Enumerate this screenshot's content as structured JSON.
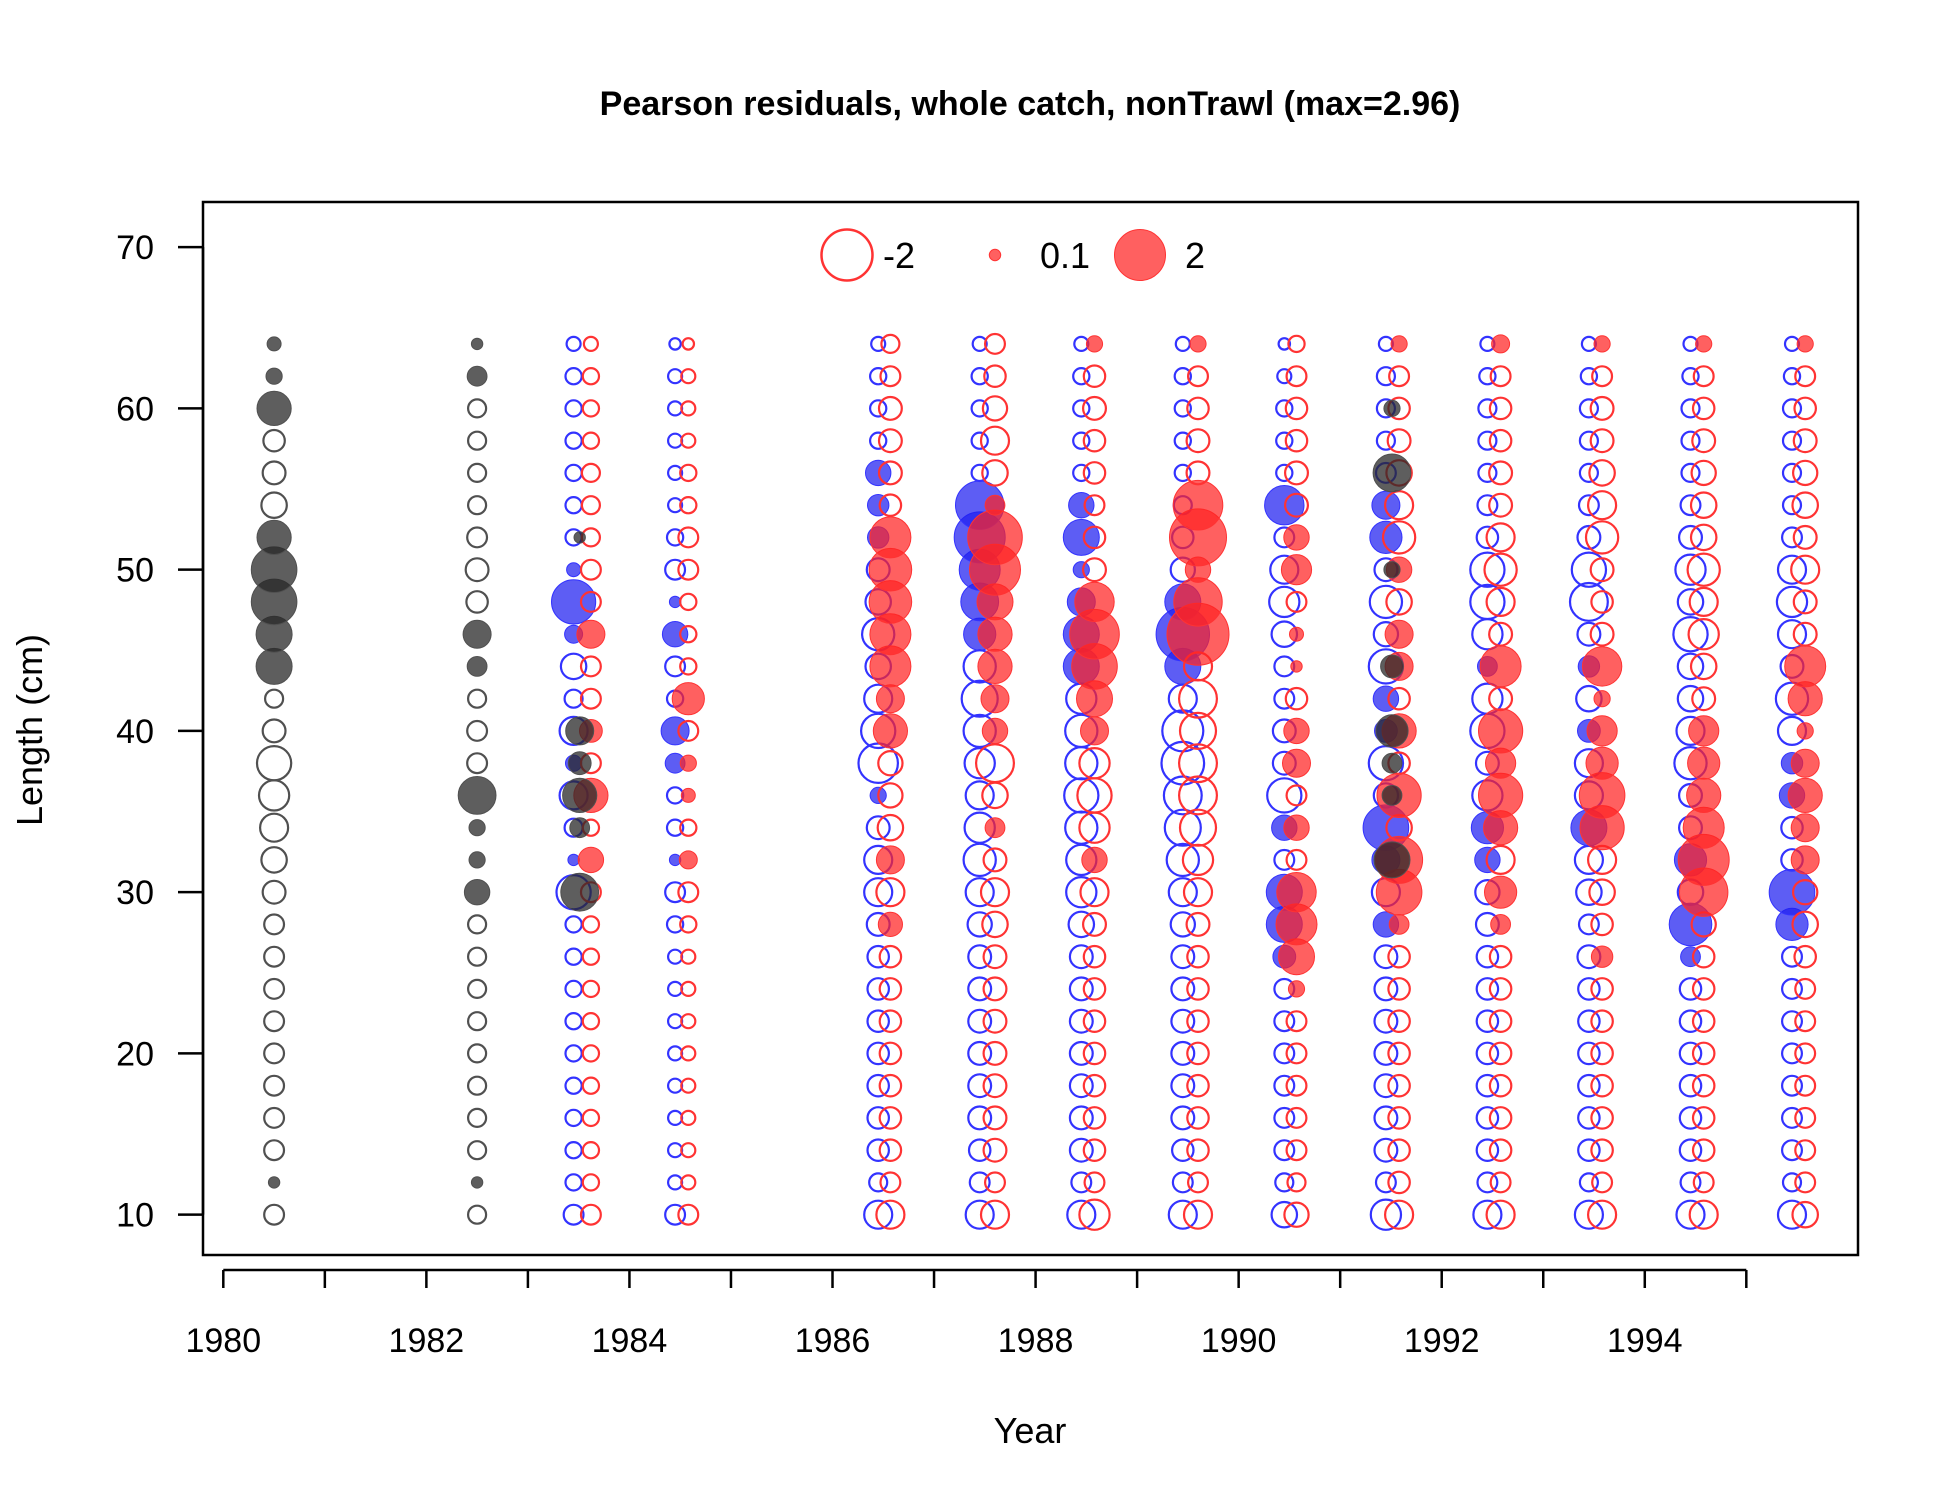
{
  "chart_data": {
    "type": "scatter",
    "title": "Pearson residuals, whole catch, nonTrawl (max=2.96)",
    "xlabel": "Year",
    "ylabel": "Length (cm)",
    "xlim": [
      1979.8,
      1996.1
    ],
    "ylim": [
      7.5,
      72.8
    ],
    "x_ticks": [
      1980,
      1982,
      1984,
      1986,
      1988,
      1990,
      1992,
      1994
    ],
    "x_tick_marks": [
      1980,
      1981,
      1982,
      1983,
      1984,
      1985,
      1986,
      1987,
      1988,
      1989,
      1990,
      1991,
      1992,
      1993,
      1994,
      1995
    ],
    "y_ticks": [
      10,
      20,
      30,
      40,
      50,
      60,
      70
    ],
    "grid": false,
    "legend": {
      "placement": "top-center",
      "entries": [
        {
          "label": "-2",
          "value": -2,
          "style": "open"
        },
        {
          "label": "0.1",
          "value": 0.1,
          "style": "filled"
        },
        {
          "label": "2",
          "value": 2,
          "style": "filled"
        }
      ]
    },
    "colors": {
      "observed_like": "#505050",
      "sex1": "#3333ff",
      "sex2": "#ff3333"
    },
    "max_abs_residual": 2.96,
    "lengths": [
      10,
      12,
      14,
      16,
      18,
      20,
      22,
      24,
      26,
      28,
      30,
      32,
      34,
      36,
      38,
      40,
      42,
      44,
      46,
      48,
      50,
      52,
      54,
      56,
      58,
      60,
      62,
      64
    ],
    "series": [
      {
        "name": "",
        "year": 1980.5,
        "color": "gray",
        "residuals": [
          -0.3,
          0.1,
          -0.3,
          -0.3,
          -0.3,
          -0.3,
          -0.3,
          -0.3,
          -0.3,
          -0.3,
          -0.4,
          -0.5,
          -0.6,
          -0.7,
          -0.9,
          -0.4,
          -0.25,
          1.0,
          1.0,
          1.6,
          1.6,
          0.9,
          -0.5,
          -0.4,
          -0.35,
          0.9,
          0.2,
          0.15
        ]
      },
      {
        "name": "",
        "year": 1982.5,
        "color": "gray",
        "residuals": [
          -0.25,
          0.1,
          -0.25,
          -0.25,
          -0.25,
          -0.25,
          -0.25,
          -0.25,
          -0.25,
          -0.25,
          0.5,
          0.2,
          0.2,
          1.1,
          -0.3,
          -0.3,
          -0.25,
          0.3,
          0.6,
          -0.35,
          -0.4,
          -0.3,
          -0.25,
          -0.25,
          -0.25,
          -0.25,
          0.3,
          0.1
        ]
      },
      {
        "name": "",
        "year": 1983.45,
        "color": "blue",
        "residuals": [
          -0.3,
          -0.2,
          -0.2,
          -0.2,
          -0.2,
          -0.2,
          -0.2,
          -0.2,
          -0.2,
          -0.2,
          -0.9,
          0.1,
          -0.25,
          -0.6,
          0.2,
          -0.6,
          -0.25,
          -0.5,
          0.25,
          1.5,
          0.15,
          -0.2,
          -0.2,
          -0.2,
          -0.2,
          -0.2,
          -0.2,
          -0.15
        ]
      },
      {
        "name": "",
        "year": 1983.62,
        "color": "red",
        "residuals": [
          -0.3,
          -0.2,
          -0.2,
          -0.2,
          -0.2,
          -0.2,
          -0.2,
          -0.2,
          -0.2,
          -0.2,
          -0.3,
          0.5,
          -0.2,
          0.9,
          -0.3,
          0.4,
          -0.3,
          -0.3,
          0.6,
          -0.3,
          -0.3,
          -0.25,
          -0.25,
          -0.25,
          -0.2,
          -0.2,
          -0.2,
          -0.15
        ]
      },
      {
        "name": "",
        "year": 1983.51,
        "color": "gray",
        "residuals": [
          0,
          0,
          0,
          0,
          0,
          0,
          0,
          0,
          0,
          0,
          1.1,
          0,
          0.3,
          0.9,
          0.4,
          0.6,
          0,
          0,
          0,
          0,
          0,
          0.1,
          0,
          0,
          0,
          0,
          0,
          0
        ]
      },
      {
        "name": "",
        "year": 1984.45,
        "color": "blue",
        "residuals": [
          -0.3,
          -0.15,
          -0.15,
          -0.15,
          -0.15,
          -0.15,
          -0.15,
          -0.15,
          -0.15,
          -0.2,
          -0.3,
          0.1,
          -0.2,
          -0.2,
          0.3,
          0.6,
          -0.2,
          -0.3,
          0.5,
          0.1,
          -0.3,
          -0.2,
          -0.15,
          -0.15,
          -0.15,
          -0.15,
          -0.15,
          -0.1
        ]
      },
      {
        "name": "",
        "year": 1984.58,
        "color": "red",
        "residuals": [
          -0.3,
          -0.15,
          -0.15,
          -0.15,
          -0.15,
          -0.15,
          -0.15,
          -0.15,
          -0.15,
          -0.2,
          -0.3,
          0.25,
          -0.2,
          0.15,
          0.2,
          -0.3,
          0.8,
          -0.2,
          -0.2,
          -0.2,
          -0.3,
          -0.3,
          -0.2,
          -0.2,
          -0.15,
          -0.15,
          -0.15,
          -0.1
        ]
      },
      {
        "name": "",
        "year": 1986.45,
        "color": "blue",
        "residuals": [
          -0.6,
          -0.25,
          -0.35,
          -0.35,
          -0.35,
          -0.35,
          -0.35,
          -0.35,
          -0.35,
          -0.4,
          -0.6,
          -0.6,
          -0.4,
          0.2,
          -1.2,
          -0.9,
          -0.6,
          -0.5,
          -0.8,
          -0.5,
          -0.4,
          0.35,
          0.35,
          0.5,
          -0.2,
          -0.2,
          -0.2,
          -0.15
        ]
      },
      {
        "name": "",
        "year": 1986.57,
        "color": "red",
        "residuals": [
          -0.6,
          -0.3,
          -0.35,
          -0.35,
          -0.35,
          -0.35,
          -0.35,
          -0.35,
          -0.35,
          0.45,
          -0.6,
          0.6,
          -0.5,
          -0.45,
          -0.45,
          0.9,
          0.6,
          1.3,
          1.3,
          1.4,
          1.4,
          1.3,
          -0.35,
          -0.4,
          -0.4,
          -0.4,
          -0.3,
          -0.25
        ]
      },
      {
        "name": "",
        "year": 1987.45,
        "color": "blue",
        "residuals": [
          -0.6,
          -0.3,
          -0.35,
          -0.4,
          -0.4,
          -0.4,
          -0.4,
          -0.4,
          -0.4,
          -0.45,
          -0.6,
          -0.8,
          -0.7,
          -0.6,
          -0.7,
          -0.8,
          -1.0,
          -0.8,
          0.8,
          1.1,
          1.3,
          2.0,
          1.8,
          -0.2,
          -0.2,
          -0.2,
          -0.2,
          -0.15
        ]
      },
      {
        "name": "",
        "year": 1987.6,
        "color": "red",
        "residuals": [
          -0.6,
          -0.3,
          -0.4,
          -0.4,
          -0.4,
          -0.4,
          -0.4,
          -0.4,
          -0.4,
          -0.5,
          -0.6,
          -0.4,
          0.3,
          -0.5,
          -1.1,
          0.5,
          0.6,
          0.9,
          0.9,
          1.0,
          2.0,
          2.3,
          0.3,
          -0.5,
          -0.6,
          -0.45,
          -0.35,
          -0.3
        ]
      },
      {
        "name": "",
        "year": 1988.45,
        "color": "blue",
        "residuals": [
          -0.6,
          -0.3,
          -0.4,
          -0.4,
          -0.4,
          -0.4,
          -0.4,
          -0.4,
          -0.4,
          -0.5,
          -0.7,
          -0.7,
          -0.8,
          -0.9,
          -0.8,
          -0.8,
          -0.7,
          1.0,
          1.0,
          0.6,
          0.2,
          1.0,
          0.5,
          -0.2,
          -0.2,
          -0.2,
          -0.2,
          -0.15
        ]
      },
      {
        "name": "",
        "year": 1988.58,
        "color": "red",
        "residuals": [
          -0.7,
          -0.3,
          -0.35,
          -0.35,
          -0.35,
          -0.35,
          -0.35,
          -0.35,
          -0.35,
          -0.4,
          -0.6,
          0.5,
          -0.7,
          -0.9,
          -0.7,
          0.6,
          1.0,
          1.6,
          1.9,
          1.2,
          -0.4,
          -0.35,
          -0.3,
          -0.35,
          -0.35,
          -0.4,
          -0.35,
          0.2
        ]
      },
      {
        "name": "",
        "year": 1989.45,
        "color": "blue",
        "residuals": [
          -0.6,
          -0.3,
          -0.35,
          -0.4,
          -0.4,
          -0.4,
          -0.4,
          -0.4,
          -0.4,
          -0.45,
          -0.6,
          -0.8,
          -1.0,
          -1.1,
          -1.4,
          -1.3,
          -0.6,
          1.0,
          2.2,
          1.0,
          -0.45,
          -0.35,
          -0.25,
          -0.2,
          -0.2,
          -0.2,
          -0.2,
          -0.15
        ]
      },
      {
        "name": "",
        "year": 1989.6,
        "color": "red",
        "residuals": [
          -0.6,
          -0.3,
          -0.35,
          -0.35,
          -0.35,
          -0.35,
          -0.35,
          -0.35,
          -0.35,
          -0.4,
          -0.6,
          -0.7,
          -1.0,
          -1.1,
          -1.1,
          -1.0,
          -1.1,
          -0.6,
          2.96,
          1.8,
          0.5,
          2.5,
          1.9,
          -0.4,
          -0.4,
          -0.35,
          -0.3,
          0.2
        ]
      },
      {
        "name": "",
        "year": 1990.45,
        "color": "blue",
        "residuals": [
          -0.5,
          -0.25,
          -0.3,
          -0.3,
          -0.3,
          -0.3,
          -0.3,
          -0.3,
          0.4,
          1.0,
          1.0,
          -0.3,
          0.5,
          -0.9,
          -0.4,
          -0.4,
          -0.3,
          -0.3,
          -0.5,
          -0.7,
          -0.6,
          -0.3,
          1.2,
          -0.2,
          -0.2,
          -0.2,
          -0.15,
          -0.1
        ]
      },
      {
        "name": "",
        "year": 1990.57,
        "color": "red",
        "residuals": [
          -0.45,
          -0.25,
          -0.3,
          -0.3,
          -0.3,
          -0.3,
          -0.3,
          0.2,
          1.0,
          1.3,
          1.2,
          -0.3,
          0.5,
          -0.3,
          0.6,
          0.5,
          -0.35,
          0.1,
          0.15,
          -0.3,
          0.7,
          0.5,
          -0.4,
          -0.4,
          -0.35,
          -0.35,
          -0.3,
          -0.2
        ]
      },
      {
        "name": "",
        "year": 1991.45,
        "color": "blue",
        "residuals": [
          -0.7,
          -0.3,
          -0.4,
          -0.4,
          -0.4,
          -0.4,
          -0.4,
          -0.4,
          -0.4,
          0.5,
          -0.6,
          0.6,
          1.6,
          -0.45,
          -0.9,
          0.4,
          0.5,
          -0.9,
          -0.45,
          -0.8,
          -0.4,
          0.8,
          0.6,
          -0.3,
          -0.25,
          -0.25,
          -0.25,
          -0.15
        ]
      },
      {
        "name": "",
        "year": 1991.58,
        "color": "red",
        "residuals": [
          -0.6,
          -0.35,
          -0.35,
          -0.35,
          -0.35,
          -0.35,
          -0.35,
          -0.35,
          -0.35,
          0.3,
          1.6,
          1.7,
          -0.5,
          1.5,
          -0.35,
          0.9,
          -0.35,
          0.6,
          0.6,
          -0.5,
          0.5,
          -0.8,
          -0.6,
          -0.5,
          -0.4,
          -0.35,
          -0.3,
          0.2
        ]
      },
      {
        "name": "",
        "year": 1991.51,
        "color": "gray",
        "residuals": [
          0,
          0,
          0,
          0,
          0,
          0,
          0,
          0,
          0,
          0,
          0,
          1.0,
          0,
          0.3,
          0.3,
          0.8,
          0,
          0.4,
          0,
          0,
          0.2,
          0,
          0,
          1.1,
          0,
          0.2,
          0,
          0
        ]
      },
      {
        "name": "",
        "year": 1992.45,
        "color": "blue",
        "residuals": [
          -0.6,
          -0.3,
          -0.35,
          -0.35,
          -0.35,
          -0.35,
          -0.35,
          -0.35,
          -0.35,
          -0.4,
          -0.45,
          0.5,
          0.8,
          -0.7,
          -0.4,
          -0.9,
          -0.7,
          0.3,
          -0.7,
          -0.9,
          -0.9,
          -0.35,
          -0.3,
          -0.25,
          -0.25,
          -0.25,
          -0.2,
          -0.15
        ]
      },
      {
        "name": "",
        "year": 1992.58,
        "color": "red",
        "residuals": [
          -0.6,
          -0.3,
          -0.35,
          -0.35,
          -0.35,
          -0.35,
          -0.35,
          -0.35,
          -0.35,
          0.3,
          0.8,
          -0.6,
          0.9,
          1.5,
          0.7,
          1.5,
          -0.4,
          1.3,
          -0.4,
          -0.6,
          -0.8,
          -0.6,
          -0.4,
          -0.4,
          -0.35,
          -0.35,
          -0.3,
          0.25
        ]
      },
      {
        "name": "",
        "year": 1993.45,
        "color": "blue",
        "residuals": [
          -0.6,
          -0.25,
          -0.35,
          -0.35,
          -0.35,
          -0.35,
          -0.35,
          -0.35,
          -0.4,
          -0.3,
          -0.5,
          -0.6,
          1.0,
          -0.6,
          -0.6,
          0.4,
          -0.5,
          0.35,
          -0.4,
          -1.1,
          -0.9,
          -0.4,
          -0.3,
          -0.25,
          -0.25,
          -0.25,
          -0.2,
          -0.15
        ]
      },
      {
        "name": "",
        "year": 1993.58,
        "color": "red",
        "residuals": [
          -0.6,
          -0.3,
          -0.35,
          -0.35,
          -0.35,
          -0.35,
          -0.35,
          -0.35,
          0.35,
          -0.35,
          -0.5,
          -0.6,
          1.5,
          1.6,
          0.8,
          0.7,
          0.2,
          1.2,
          -0.4,
          -0.35,
          -0.4,
          -0.8,
          -0.6,
          -0.5,
          -0.4,
          -0.4,
          -0.3,
          0.2
        ]
      },
      {
        "name": "",
        "year": 1994.45,
        "color": "blue",
        "residuals": [
          -0.6,
          -0.3,
          -0.35,
          -0.35,
          -0.35,
          -0.35,
          -0.35,
          -0.35,
          0.3,
          1.4,
          -0.5,
          0.8,
          -0.4,
          -0.4,
          -0.8,
          -0.6,
          -0.5,
          -0.5,
          -0.9,
          -0.5,
          -0.7,
          -0.4,
          -0.3,
          -0.25,
          -0.25,
          -0.25,
          -0.2,
          -0.15
        ]
      },
      {
        "name": "",
        "year": 1994.58,
        "color": "red",
        "residuals": [
          -0.6,
          -0.3,
          -0.35,
          -0.35,
          -0.35,
          -0.35,
          -0.35,
          -0.35,
          -0.35,
          -0.45,
          1.8,
          2.0,
          1.3,
          0.9,
          0.8,
          0.7,
          -0.4,
          -0.5,
          -0.7,
          -0.6,
          -0.8,
          -0.5,
          -0.5,
          -0.45,
          -0.4,
          -0.35,
          -0.3,
          0.2
        ]
      },
      {
        "name": "",
        "year": 1995.45,
        "color": "blue",
        "residuals": [
          -0.6,
          -0.25,
          -0.3,
          -0.3,
          -0.3,
          -0.3,
          -0.3,
          -0.3,
          -0.3,
          0.8,
          1.6,
          -0.35,
          -0.35,
          0.5,
          0.35,
          -0.6,
          -0.8,
          -0.4,
          -0.6,
          -0.7,
          -0.6,
          -0.3,
          -0.25,
          -0.25,
          -0.25,
          -0.25,
          -0.2,
          -0.15
        ]
      },
      {
        "name": "",
        "year": 1995.58,
        "color": "red",
        "residuals": [
          -0.5,
          -0.3,
          -0.3,
          -0.3,
          -0.3,
          -0.3,
          -0.3,
          -0.3,
          -0.35,
          -0.5,
          -0.45,
          0.6,
          0.6,
          0.9,
          0.6,
          0.2,
          0.9,
          1.3,
          -0.4,
          -0.4,
          -0.6,
          -0.4,
          -0.5,
          -0.45,
          -0.4,
          -0.35,
          -0.3,
          0.2
        ]
      }
    ]
  }
}
